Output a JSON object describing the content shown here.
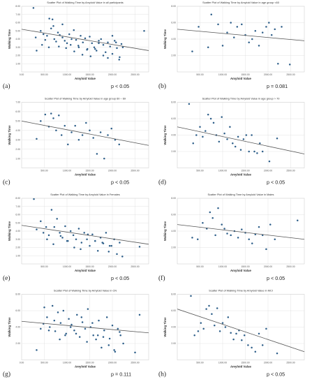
{
  "chart_data": [
    {
      "type": "scatter",
      "panel_label": "(a)",
      "title": "Scatter Plot of Walking Time by Amyloid Value in all participants",
      "xlabel": "Amyloid Value",
      "ylabel": "Walking Time",
      "xlim": [
        0,
        2800
      ],
      "ylim": [
        0,
        8
      ],
      "xticks": [
        "0.00",
        "500.00",
        "1000.00",
        "1500.00",
        "2000.00",
        "2500.00"
      ],
      "yticks": [
        "1.00",
        "2.00",
        "3.00",
        "4.00",
        "5.00",
        "6.00",
        "7.00",
        "8.00"
      ],
      "grid": true,
      "p_text": "p < 0.05",
      "fit_line": [
        [
          0,
          5.2
        ],
        [
          2800,
          2.6
        ]
      ],
      "x": [
        260,
        310,
        420,
        480,
        520,
        560,
        610,
        650,
        680,
        720,
        760,
        800,
        840,
        900,
        950,
        1000,
        1050,
        1100,
        1150,
        1200,
        1250,
        1300,
        1350,
        1400,
        1450,
        1500,
        1550,
        1600,
        1650,
        1700,
        1750,
        1800,
        1850,
        1900,
        1950,
        2000,
        2050,
        2100,
        2150,
        2200,
        330,
        450,
        600,
        700,
        820,
        900,
        980,
        1080,
        1160,
        1260,
        1340,
        1440,
        1520,
        1620,
        1700,
        1800,
        1900,
        2000,
        2080,
        2160,
        2230,
        2700
      ],
      "y": [
        7.8,
        4.2,
        5.0,
        4.6,
        3.9,
        4.4,
        6.5,
        5.3,
        6.4,
        4.0,
        3.7,
        4.8,
        4.5,
        4.2,
        3.8,
        3.5,
        4.6,
        4.0,
        5.1,
        3.9,
        3.2,
        4.4,
        3.6,
        4.1,
        2.8,
        4.3,
        3.5,
        3.0,
        2.6,
        3.8,
        4.0,
        3.3,
        2.4,
        3.6,
        3.1,
        2.2,
        3.8,
        2.9,
        1.5,
        3.4,
        2.6,
        3.3,
        3.0,
        5.6,
        3.1,
        5.8,
        2.9,
        3.3,
        2.5,
        3.0,
        2.1,
        2.7,
        1.9,
        2.8,
        3.5,
        2.0,
        1.7,
        4.4,
        3.6,
        1.8,
        3.0,
        5.0
      ]
    },
    {
      "type": "scatter",
      "panel_label": "(b)",
      "title": "Scatter Plot of Walking Time by Amyloid Value in age group <60",
      "xlabel": "Amyloid Value",
      "ylabel": "Walking Time",
      "xlim": [
        0,
        2800
      ],
      "ylim": [
        0,
        8
      ],
      "xticks": [
        "500.00",
        "1000.00",
        "1500.00",
        "2000.00",
        "2500.00"
      ],
      "yticks": [
        "2.00",
        "4.00",
        "6.00",
        "8.00"
      ],
      "grid": true,
      "p_text": "p = 0.081",
      "fit_line": [
        [
          0,
          5.2
        ],
        [
          2800,
          3.8
        ]
      ],
      "x": [
        330,
        470,
        680,
        750,
        900,
        1000,
        1100,
        1180,
        1250,
        1320,
        1420,
        1500,
        1580,
        1650,
        1720,
        1800,
        1880,
        1960,
        2020,
        2080,
        2150,
        2220,
        2300,
        2480
      ],
      "y": [
        2.5,
        5.5,
        3.0,
        7.0,
        5.8,
        3.2,
        4.8,
        6.0,
        4.2,
        5.5,
        5.8,
        4.5,
        3.6,
        4.0,
        5.0,
        3.2,
        4.8,
        5.5,
        6.0,
        4.5,
        5.2,
        1.0,
        5.5,
        0.9
      ]
    },
    {
      "type": "scatter",
      "panel_label": "(c)",
      "title": "Scatter Plot of Walking Time by Amyloid Value in age group 60 – 69",
      "xlabel": "Amyloid Value",
      "ylabel": "Walking Time",
      "xlim": [
        0,
        2800
      ],
      "ylim": [
        0,
        7
      ],
      "xticks": [
        "500.00",
        "1000.00",
        "1500.00",
        "2000.00",
        "2500.00"
      ],
      "yticks": [
        "1.00",
        "2.00",
        "3.00",
        "4.00",
        "5.00",
        "6.00",
        "7.00"
      ],
      "grid": true,
      "p_text": "p < 0.05",
      "fit_line": [
        [
          0,
          5.0
        ],
        [
          2800,
          2.4
        ]
      ],
      "x": [
        330,
        420,
        520,
        600,
        650,
        700,
        760,
        820,
        880,
        950,
        1020,
        1100,
        1180,
        1260,
        1340,
        1420,
        1500,
        1580,
        1660,
        1740,
        1820,
        1900,
        1980,
        2060,
        2150
      ],
      "y": [
        3.1,
        5.0,
        5.7,
        4.4,
        5.8,
        5.3,
        4.0,
        5.6,
        3.5,
        4.5,
        2.5,
        3.8,
        4.5,
        3.0,
        3.5,
        4.8,
        4.0,
        3.2,
        1.5,
        3.8,
        1.0,
        3.5,
        4.2,
        3.0,
        2.5
      ]
    },
    {
      "type": "scatter",
      "panel_label": "(d)",
      "title": "Scatter Plot of Walking Time by Amyloid Value in age group > 70",
      "xlabel": "Amyloid Value",
      "ylabel": "Walking Time",
      "xlim": [
        0,
        2800
      ],
      "ylim": [
        0,
        8
      ],
      "xticks": [
        "500.00",
        "1000.00",
        "1500.00",
        "2000.00",
        "2500.00"
      ],
      "yticks": [
        "2.00",
        "4.00",
        "6.00",
        "8.00"
      ],
      "grid": true,
      "p_text": "p < 0.05",
      "fit_line": [
        [
          0,
          5.0
        ],
        [
          2800,
          1.7
        ]
      ],
      "x": [
        260,
        350,
        420,
        500,
        560,
        620,
        680,
        740,
        800,
        860,
        920,
        980,
        1040,
        1100,
        1160,
        1220,
        1280,
        1340,
        1400,
        1460,
        1520,
        1580,
        1640,
        1700,
        1760,
        1820,
        1880,
        2030,
        2200
      ],
      "y": [
        7.8,
        3.0,
        4.0,
        5.0,
        3.8,
        4.5,
        6.5,
        6.0,
        5.5,
        4.0,
        3.2,
        6.2,
        4.2,
        3.5,
        5.0,
        3.0,
        2.6,
        3.8,
        2.2,
        3.5,
        4.0,
        2.0,
        4.0,
        2.0,
        1.8,
        3.0,
        2.0,
        0.8,
        3.6
      ]
    },
    {
      "type": "scatter",
      "panel_label": "(e)",
      "title": "Scatter Plot of Walking Time by Amyloid Value in Females",
      "xlabel": "Amyloid Value",
      "ylabel": "Walking Time",
      "xlim": [
        0,
        2800
      ],
      "ylim": [
        0,
        8
      ],
      "xticks": [
        "500.00",
        "1000.00",
        "1500.00",
        "2000.00",
        "2500.00"
      ],
      "yticks": [
        "1.00",
        "2.00",
        "3.00",
        "4.00",
        "5.00",
        "6.00",
        "7.00",
        "8.00"
      ],
      "grid": true,
      "p_text": "p < 0.05",
      "fit_line": [
        [
          0,
          4.7
        ],
        [
          2800,
          2.4
        ]
      ],
      "x": [
        270,
        330,
        420,
        480,
        540,
        600,
        660,
        720,
        780,
        840,
        900,
        960,
        1020,
        1080,
        1140,
        1200,
        1260,
        1320,
        1380,
        1440,
        1500,
        1560,
        1620,
        1680,
        1740,
        1800,
        1860,
        1920,
        1980,
        2040,
        2100,
        2160,
        2220,
        2600,
        560,
        700,
        860,
        1000,
        1160,
        1300,
        1460,
        1620,
        1780,
        1940
      ],
      "y": [
        7.9,
        4.2,
        5.2,
        3.8,
        4.5,
        3.5,
        6.6,
        4.5,
        5.5,
        3.8,
        3.2,
        4.6,
        2.8,
        4.0,
        3.5,
        3.0,
        4.3,
        2.6,
        3.8,
        3.0,
        2.2,
        3.6,
        2.8,
        1.6,
        3.2,
        2.5,
        3.8,
        1.5,
        2.2,
        3.0,
        1.2,
        2.6,
        0.9,
        2.1,
        3.0,
        2.4,
        3.4,
        2.8,
        2.0,
        1.8,
        3.6,
        2.8,
        2.6,
        2.2
      ]
    },
    {
      "type": "scatter",
      "panel_label": "(f)",
      "title": "Scatter Plot of Walking Time by Amyloid Value in Males",
      "xlabel": "Amyloid Value",
      "ylabel": "Walking Time",
      "xlim": [
        0,
        2800
      ],
      "ylim": [
        0,
        8
      ],
      "xticks": [
        "500.00",
        "1000.00",
        "1500.00",
        "2000.00",
        "2500.00"
      ],
      "yticks": [
        "2.00",
        "4.00",
        "6.00",
        "8.00"
      ],
      "grid": true,
      "p_text": "p < 0.05",
      "fit_line": [
        [
          0,
          4.8
        ],
        [
          2800,
          3.0
        ]
      ],
      "x": [
        330,
        450,
        560,
        650,
        720,
        780,
        840,
        900,
        980,
        1040,
        1100,
        1180,
        1260,
        1340,
        1420,
        1500,
        1580,
        1650,
        1720,
        1800,
        1880,
        1960,
        2050,
        2150,
        2650
      ],
      "y": [
        3.2,
        3.0,
        5.0,
        4.3,
        6.3,
        5.6,
        3.5,
        6.8,
        4.8,
        4.3,
        3.7,
        3.5,
        4.0,
        3.2,
        4.2,
        3.8,
        3.0,
        2.5,
        3.6,
        4.5,
        3.5,
        1.8,
        4.8,
        3.0,
        5.3
      ]
    },
    {
      "type": "scatter",
      "panel_label": "(g)",
      "title": "Scatter Plot of Walking Time by Amyloid Value in CN",
      "xlabel": "Amyloid Value",
      "ylabel": "Walking Time",
      "xlim": [
        0,
        2800
      ],
      "ylim": [
        0,
        8
      ],
      "xticks": [
        "0.00",
        "500.00",
        "1000.00",
        "1500.00",
        "2000.00",
        "2500.00"
      ],
      "yticks": [
        "2.00",
        "4.00",
        "6.00",
        "8.00"
      ],
      "grid": true,
      "p_text": "p = 0.111",
      "fit_line": [
        [
          0,
          4.7
        ],
        [
          2800,
          3.3
        ]
      ],
      "x": [
        330,
        420,
        500,
        560,
        620,
        680,
        740,
        800,
        860,
        920,
        980,
        1040,
        1100,
        1160,
        1220,
        1280,
        1340,
        1400,
        1460,
        1520,
        1580,
        1640,
        1700,
        1760,
        1820,
        1880,
        1940,
        2000,
        2060,
        2120,
        2180,
        2240,
        2500,
        480,
        600,
        720,
        840,
        960,
        1080,
        1200,
        1320,
        1440,
        1560,
        1680,
        1800,
        1920,
        2040,
        2160,
        2600
      ],
      "y": [
        1.2,
        3.8,
        6.4,
        5.2,
        4.0,
        6.6,
        3.5,
        5.8,
        4.5,
        6.0,
        3.2,
        5.0,
        4.3,
        3.6,
        5.5,
        2.8,
        4.6,
        3.8,
        6.2,
        4.0,
        3.0,
        2.5,
        4.8,
        1.5,
        3.6,
        5.2,
        2.6,
        4.2,
        1.0,
        3.8,
        3.0,
        2.0,
        0.9,
        4.4,
        3.6,
        4.8,
        2.5,
        3.0,
        4.0,
        3.2,
        5.2,
        2.2,
        4.5,
        3.0,
        2.8,
        1.8,
        1.2,
        3.4,
        5.5
      ]
    },
    {
      "type": "scatter",
      "panel_label": "(h)",
      "title": "Scatter Plot of Walking Time by Amyloid Value in MCI",
      "xlabel": "Amyloid Value",
      "ylabel": "Walking Time",
      "xlim": [
        0,
        2800
      ],
      "ylim": [
        0,
        8
      ],
      "xticks": [
        "500.00",
        "1000.00",
        "1500.00",
        "2000.00",
        "2500.00"
      ],
      "yticks": [
        "2.00",
        "4.00",
        "6.00",
        "8.00"
      ],
      "grid": true,
      "p_text": "p < 0.05",
      "fit_line": [
        [
          0,
          6.2
        ],
        [
          2800,
          1.0
        ]
      ],
      "x": [
        300,
        380,
        460,
        520,
        580,
        640,
        700,
        760,
        820,
        880,
        940,
        1000,
        1060,
        1120,
        1180,
        1240,
        1300,
        1360,
        1420,
        1480,
        1560,
        1640,
        1720,
        1800,
        1880,
        1960,
        2200
      ],
      "y": [
        7.8,
        3.0,
        3.5,
        4.5,
        3.8,
        6.2,
        6.6,
        5.6,
        4.2,
        6.3,
        3.5,
        4.5,
        4.0,
        5.2,
        3.3,
        2.5,
        3.2,
        3.6,
        2.4,
        3.0,
        1.8,
        1.5,
        1.0,
        3.2,
        1.8,
        3.8,
        0.8
      ]
    }
  ]
}
